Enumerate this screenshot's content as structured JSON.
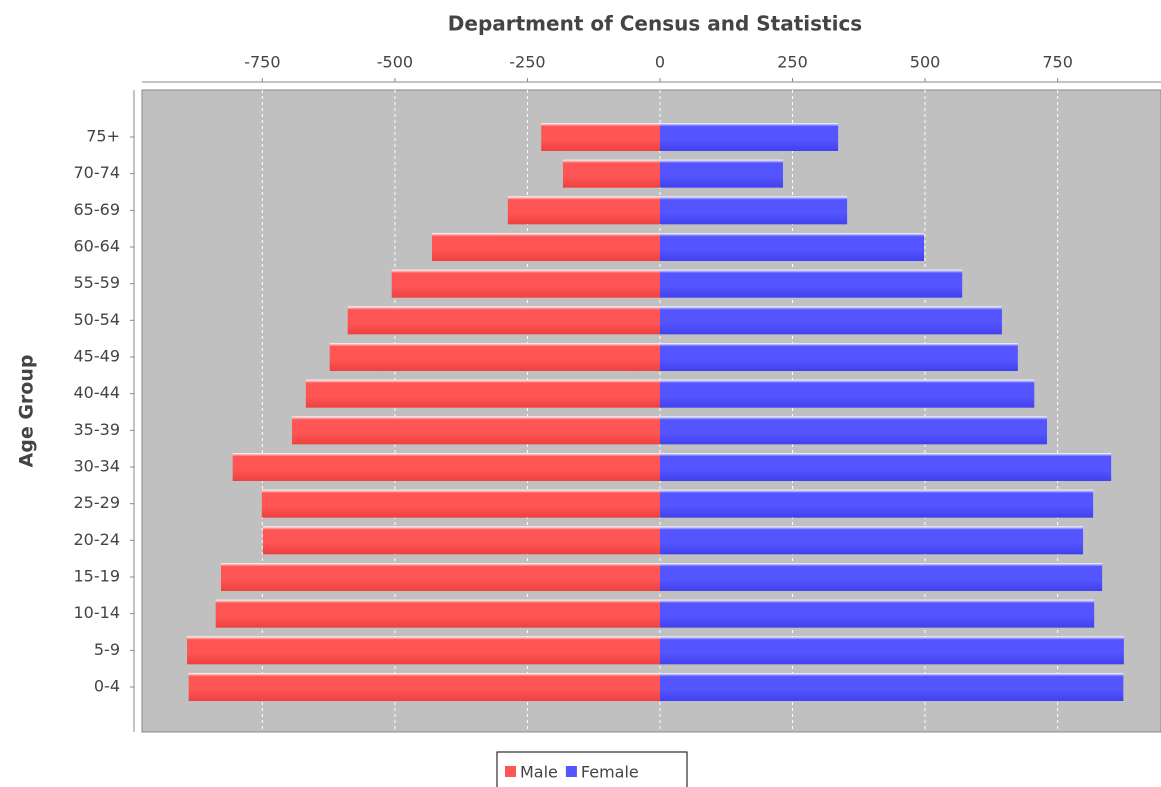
{
  "chart_data": {
    "type": "bar",
    "orientation": "horizontal",
    "title": "Department of Census and Statistics",
    "y_label": "Age Group",
    "categories": [
      "75+",
      "70-74",
      "65-69",
      "60-64",
      "55-59",
      "50-54",
      "45-49",
      "40-44",
      "35-39",
      "30-34",
      "25-29",
      "20-24",
      "15-19",
      "10-14",
      "5-9",
      "0-4"
    ],
    "series": [
      {
        "name": "Male",
        "color": "#ff5555",
        "values": [
          -224,
          -183,
          -287,
          -430,
          -506,
          -589,
          -623,
          -668,
          -694,
          -806,
          -751,
          -749,
          -828,
          -838,
          -892,
          -889
        ]
      },
      {
        "name": "Female",
        "color": "#5555ff",
        "values": [
          336,
          232,
          353,
          498,
          570,
          645,
          675,
          706,
          730,
          851,
          817,
          798,
          834,
          819,
          875,
          874
        ]
      }
    ],
    "xlim": [
      -977,
      945
    ],
    "xticks": [
      -750,
      -500,
      -250,
      0,
      250,
      500,
      750
    ],
    "grid": true,
    "legend": "bottom"
  }
}
